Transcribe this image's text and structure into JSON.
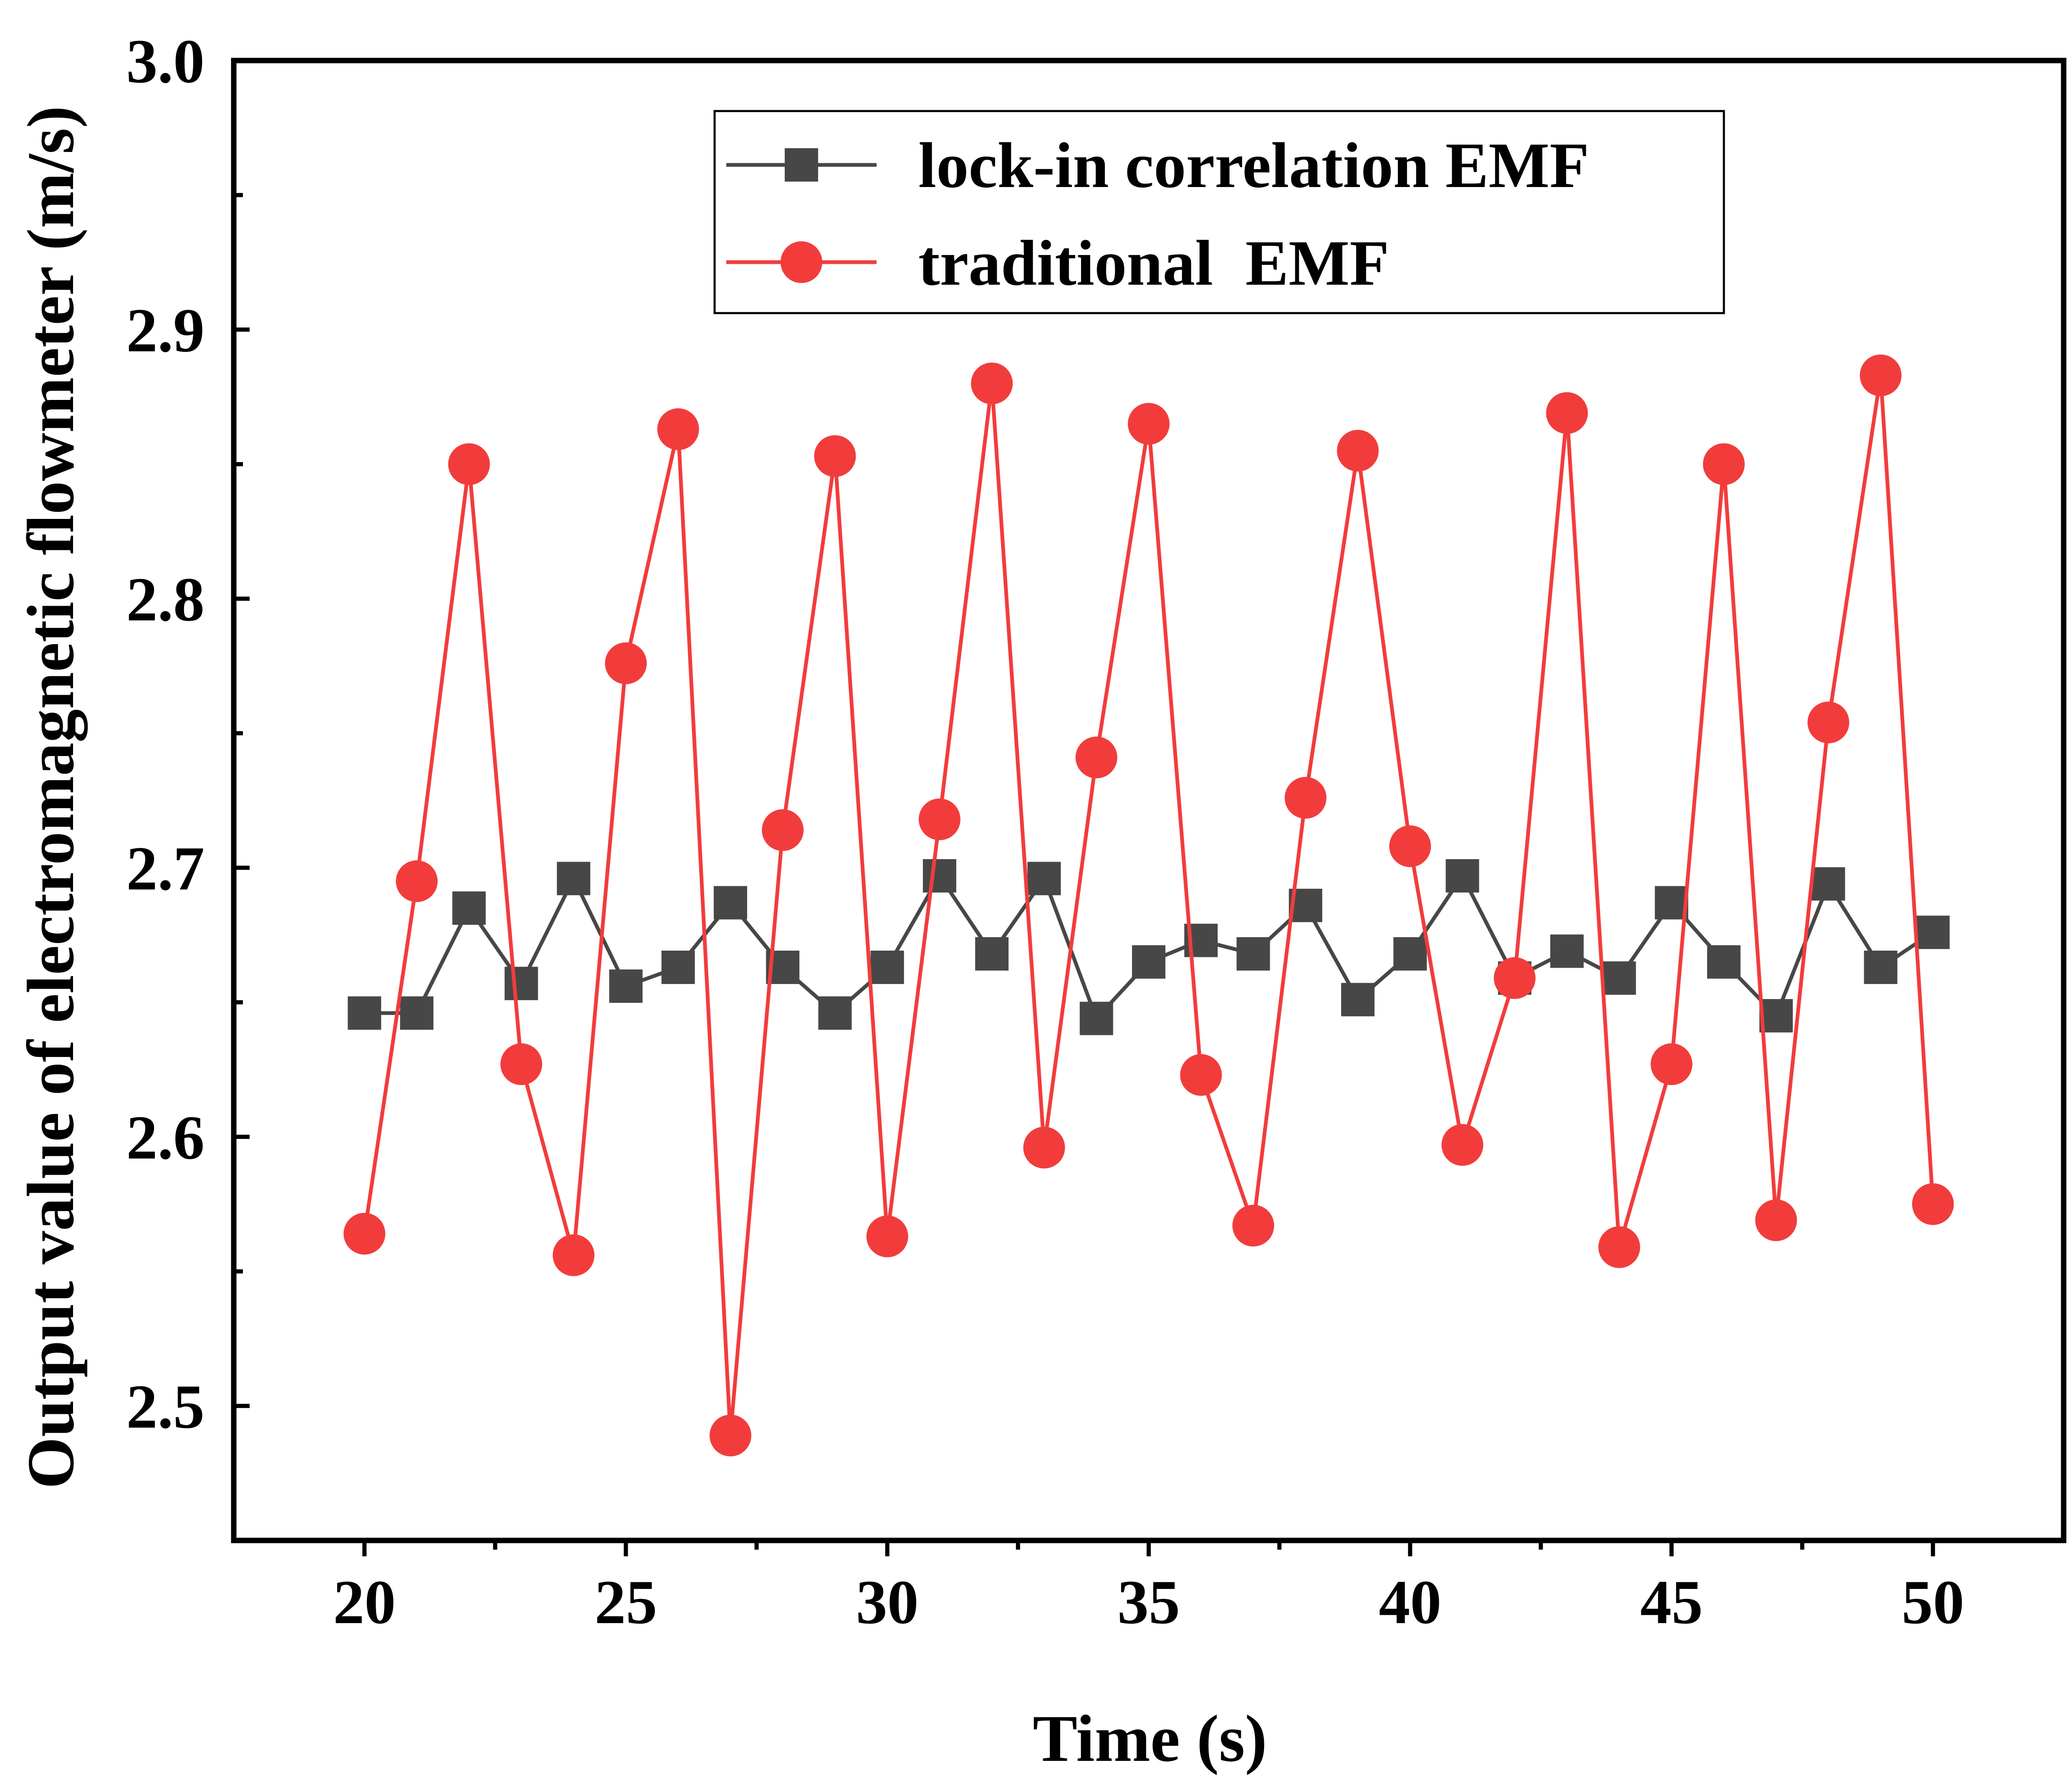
{
  "chart_data": {
    "type": "line",
    "title": "",
    "xlabel": "Time (s)",
    "ylabel": "Output value of electromagnetic flowmeter (m/s)",
    "xlim": [
      17.5,
      52.5
    ],
    "ylim": [
      2.45,
      3.0
    ],
    "xticks": [
      20,
      25,
      30,
      35,
      40,
      45,
      50
    ],
    "xtick_labels": [
      "20",
      "25",
      "30",
      "35",
      "40",
      "45",
      "50"
    ],
    "yticks": [
      2.5,
      2.6,
      2.7,
      2.8,
      2.9,
      3.0
    ],
    "ytick_labels": [
      "2.5",
      "2.6",
      "2.7",
      "2.8",
      "2.9",
      "3.0"
    ],
    "grid": false,
    "legend_position": "top",
    "x": [
      20,
      21,
      22,
      23,
      24,
      25,
      26,
      27,
      28,
      29,
      30,
      31,
      32,
      33,
      34,
      35,
      36,
      37,
      38,
      39,
      40,
      41,
      42,
      43,
      44,
      45,
      46,
      47,
      48,
      49,
      50
    ],
    "series": [
      {
        "name": "lock-in correlation EMF",
        "color": "#474747",
        "marker": "square",
        "values": [
          2.646,
          2.646,
          2.685,
          2.657,
          2.696,
          2.656,
          2.663,
          2.687,
          2.663,
          2.646,
          2.663,
          2.697,
          2.668,
          2.696,
          2.644,
          2.665,
          2.673,
          2.668,
          2.686,
          2.651,
          2.668,
          2.697,
          2.659,
          2.669,
          2.659,
          2.687,
          2.665,
          2.645,
          2.694,
          2.663,
          2.676
        ]
      },
      {
        "name": "traditional  EMF",
        "color": "#f23c3c",
        "marker": "circle",
        "values": [
          2.564,
          2.695,
          2.85,
          2.627,
          2.556,
          2.776,
          2.863,
          2.489,
          2.714,
          2.853,
          2.563,
          2.718,
          2.88,
          2.596,
          2.741,
          2.865,
          2.623,
          2.567,
          2.726,
          2.855,
          2.708,
          2.597,
          2.659,
          2.869,
          2.559,
          2.627,
          2.85,
          2.569,
          2.754,
          2.883,
          2.575
        ]
      }
    ]
  }
}
